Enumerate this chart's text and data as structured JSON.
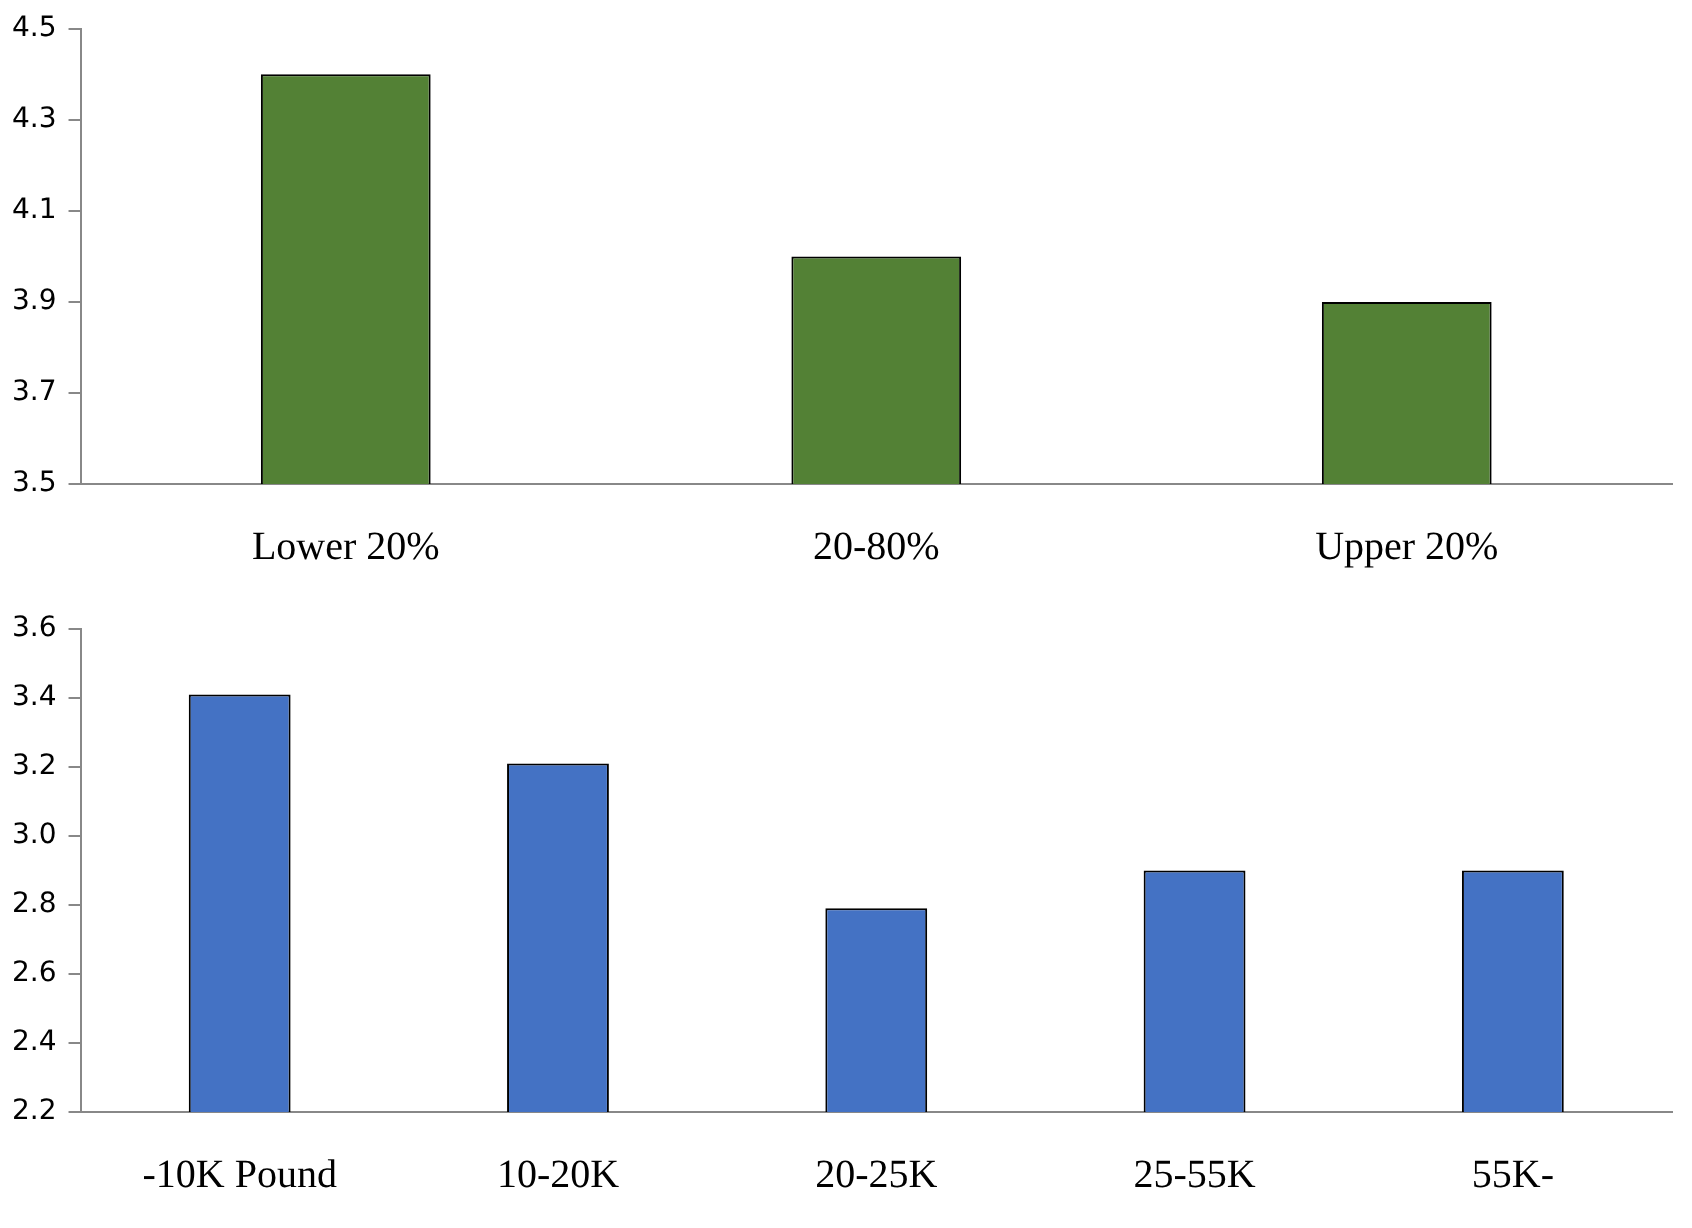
{
  "chart_data": [
    {
      "type": "bar",
      "categories": [
        "Lower 20%",
        "20-80%",
        "Upper 20%"
      ],
      "values": [
        4.4,
        4.0,
        3.9
      ],
      "color": "#538135",
      "ylim": [
        3.5,
        4.5
      ],
      "yticks": [
        3.5,
        3.7,
        3.9,
        4.1,
        4.3,
        4.5
      ],
      "grid": false,
      "legend": false
    },
    {
      "type": "bar",
      "categories": [
        "-10K Pound",
        "10-20K",
        "20-25K",
        "25-55K",
        "55K-"
      ],
      "values": [
        3.41,
        3.21,
        2.79,
        2.9,
        2.9
      ],
      "color": "#4472c4",
      "ylim": [
        2.2,
        3.6
      ],
      "yticks": [
        2.2,
        2.4,
        2.6,
        2.8,
        {
          "value": 3.0,
          "label": "3.0"
        },
        3.2,
        3.4,
        3.6
      ],
      "grid": false,
      "legend": false
    }
  ]
}
